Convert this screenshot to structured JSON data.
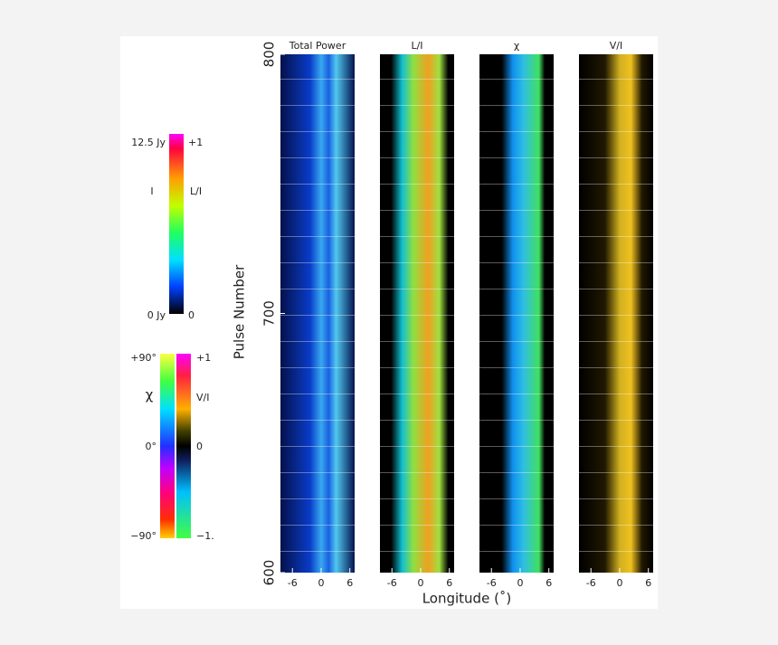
{
  "y_axis": {
    "label": "Pulse Number",
    "ticks": [
      600,
      700,
      800
    ],
    "lim": [
      600,
      800
    ]
  },
  "x_axis": {
    "label": "Longitude (˚)",
    "ticks": [
      -6,
      0,
      6
    ],
    "lim": [
      -8.5,
      7
    ]
  },
  "panels": [
    {
      "title": "Total Power"
    },
    {
      "title": "L/I"
    },
    {
      "title": "χ"
    },
    {
      "title": "V/I"
    }
  ],
  "colorbars": [
    {
      "left_labels": [
        "12.5 Jy",
        "I",
        "0 Jy"
      ],
      "right_labels": [
        "+1",
        "L/I",
        "0"
      ]
    },
    {
      "left_labels": [
        "+90°",
        "χ",
        "0°",
        "−90°"
      ],
      "right_labels": [
        "+1",
        "V/I",
        "0",
        "−1."
      ]
    }
  ]
}
